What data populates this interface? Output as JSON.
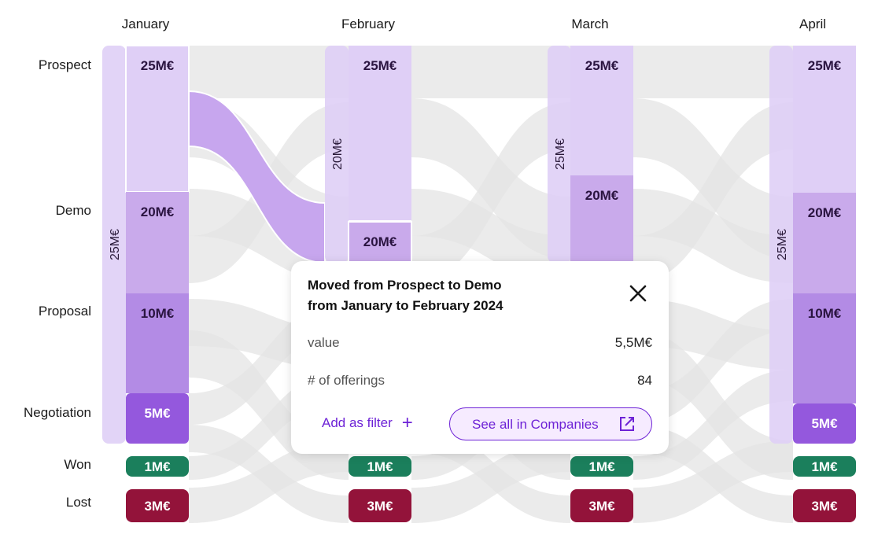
{
  "chart_data": {
    "type": "sankey",
    "months": [
      "January",
      "February",
      "March",
      "April"
    ],
    "stages": [
      "Prospect",
      "Demo",
      "Proposal",
      "Negotiation",
      "Won",
      "Lost"
    ],
    "nodes": [
      {
        "month": "January",
        "values": [
          "25M€",
          "20M€",
          "10M€",
          "5M€",
          "1M€",
          "3M€"
        ],
        "total": "25M€"
      },
      {
        "month": "February",
        "values": [
          "25M€",
          "20M€",
          "",
          "",
          "1M€",
          "3M€"
        ],
        "total": "20M€"
      },
      {
        "month": "March",
        "values": [
          "25M€",
          "20M€",
          "",
          "",
          "1M€",
          "3M€"
        ],
        "total": "25M€"
      },
      {
        "month": "April",
        "values": [
          "25M€",
          "20M€",
          "10M€",
          "5M€",
          "1M€",
          "3M€"
        ],
        "total": "25M€"
      }
    ],
    "highlighted_flow": {
      "from_stage": "Prospect",
      "to_stage": "Demo",
      "from_month": "January",
      "to_month": "February"
    }
  },
  "tooltip": {
    "title_line1": "Moved from Prospect to Demo",
    "title_line2": "from January to February 2024",
    "value_label": "value",
    "value": "5,5M€",
    "offerings_label": "# of offerings",
    "offerings": "84",
    "filter_button": "Add as filter",
    "link_button": "See all in Companies",
    "close_icon": "close-icon",
    "plus_icon": "plus-icon",
    "external_icon": "external-link-icon"
  },
  "colors": {
    "prospect": "#dfcff6",
    "demo": "#c9aaeb",
    "proposal": "#b38be5",
    "negotiation": "#9458dd",
    "won": "#1b7f5c",
    "lost": "#93133a",
    "accent": "#6d22d6",
    "flow_gray": "#e4e4e4",
    "flow_highlight": "#c7a6ee"
  }
}
